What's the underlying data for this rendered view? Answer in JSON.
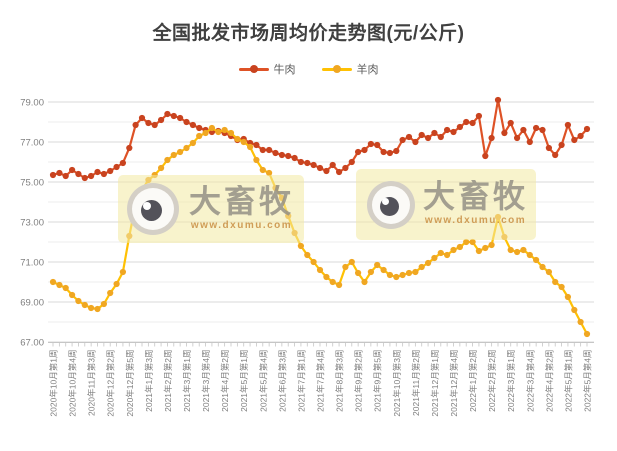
{
  "title": "全国批发市场周均价走势图(元/公斤)",
  "watermark": {
    "name": "大畜牧",
    "url": "www.dxumu.com"
  },
  "chart_data": {
    "type": "line",
    "title": "全国批发市场周均价走势图(元/公斤)",
    "xlabel": "",
    "ylabel": "",
    "ylim": [
      67,
      79
    ],
    "grid": true,
    "grid_step": 1,
    "legend_position": "top",
    "y_tick_labels": [
      "67.00",
      "69.00",
      "71.00",
      "73.00",
      "75.00",
      "77.00",
      "79.00"
    ],
    "label_every": 3,
    "x_tick_labels": [
      "2020年10月第1周",
      "2020年10月第4周",
      "2020年11月第3周",
      "2020年12月第2周",
      "2020年12月第5周",
      "2021年1月第3周",
      "2021年2月第2周",
      "2021年3月第1周",
      "2021年3月第4周",
      "2021年4月第2周",
      "2021年5月第1周",
      "2021年5月第4周",
      "2021年6月第3周",
      "2021年7月第1周",
      "2021年7月第4周",
      "2021年8月第3周",
      "2021年9月第2周",
      "2021年9月第5周",
      "2021年10月第3周",
      "2021年11月第2周",
      "2021年12月第1周",
      "2021年12月第4周",
      "2022年1月第2周",
      "2022年2月第2周",
      "2022年3月第1周",
      "2022年3月第4周",
      "2022年4月第2周",
      "2022年5月第1周",
      "2022年5月第4周"
    ],
    "series": [
      {
        "name": "牛肉",
        "color": "#DE5226",
        "marker_color": "#C9431F",
        "values": [
          75.35,
          75.45,
          75.3,
          75.6,
          75.4,
          75.2,
          75.3,
          75.5,
          75.4,
          75.55,
          75.75,
          75.95,
          76.7,
          77.85,
          78.2,
          77.95,
          77.85,
          78.1,
          78.4,
          78.3,
          78.2,
          78.0,
          77.85,
          77.7,
          77.6,
          77.5,
          77.55,
          77.45,
          77.3,
          77.1,
          77.15,
          76.95,
          76.85,
          76.6,
          76.6,
          76.45,
          76.35,
          76.3,
          76.2,
          76.0,
          75.95,
          75.85,
          75.7,
          75.55,
          75.85,
          75.5,
          75.7,
          76.0,
          76.5,
          76.6,
          76.9,
          76.85,
          76.5,
          76.45,
          76.55,
          77.1,
          77.25,
          77.0,
          77.35,
          77.2,
          77.45,
          77.25,
          77.6,
          77.5,
          77.75,
          78.0,
          77.95,
          78.3,
          76.3,
          77.2,
          79.1,
          77.45,
          77.95,
          77.2,
          77.6,
          77.0,
          77.7,
          77.6,
          76.7,
          76.35,
          76.85,
          77.85,
          77.1,
          77.3,
          77.65
        ]
      },
      {
        "name": "羊肉",
        "color": "#FFC103",
        "marker_color": "#F0A722",
        "values": [
          70.0,
          69.85,
          69.7,
          69.35,
          69.05,
          68.85,
          68.7,
          68.65,
          68.9,
          69.45,
          69.9,
          70.5,
          72.3,
          73.9,
          74.6,
          75.1,
          75.35,
          75.7,
          76.1,
          76.35,
          76.5,
          76.7,
          76.95,
          77.3,
          77.45,
          77.7,
          77.5,
          77.6,
          77.45,
          77.15,
          77.0,
          76.75,
          76.1,
          75.6,
          75.45,
          74.7,
          74.2,
          73.3,
          72.45,
          71.8,
          71.35,
          71.0,
          70.6,
          70.25,
          70.0,
          69.85,
          70.75,
          71.0,
          70.45,
          70.0,
          70.5,
          70.85,
          70.6,
          70.35,
          70.25,
          70.35,
          70.45,
          70.5,
          70.75,
          70.95,
          71.2,
          71.45,
          71.35,
          71.6,
          71.75,
          72.0,
          72.0,
          71.55,
          71.7,
          71.85,
          73.25,
          72.25,
          71.6,
          71.5,
          71.6,
          71.35,
          71.1,
          70.75,
          70.5,
          70.0,
          69.75,
          69.25,
          68.6,
          68.0,
          67.4
        ]
      }
    ]
  }
}
